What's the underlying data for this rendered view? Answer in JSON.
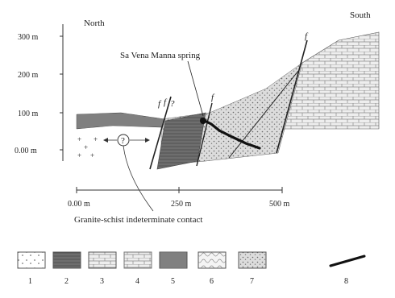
{
  "directions": {
    "left": "North",
    "right": "South"
  },
  "y_ticks": [
    "300 m",
    "200 m",
    "100 m",
    "0.00 m"
  ],
  "x_ticks": [
    "0.00 m",
    "250 m",
    "500 m"
  ],
  "annotations": {
    "spring": "Sa Vena Manna spring",
    "contact": "Granite-schist indeterminate contact",
    "circle_mark": "?",
    "fault_marks": [
      "f",
      "f",
      "?",
      "f",
      "f"
    ]
  },
  "legend": [
    {
      "num": "1",
      "pattern": "granite-crosses"
    },
    {
      "num": "2",
      "pattern": "dark-schist"
    },
    {
      "num": "3",
      "pattern": "bricks-light"
    },
    {
      "num": "4",
      "pattern": "bricks-thin"
    },
    {
      "num": "5",
      "pattern": "dark-lines"
    },
    {
      "num": "6",
      "pattern": "wavy-cells"
    },
    {
      "num": "7",
      "pattern": "stipple"
    },
    {
      "num": "8",
      "pattern": "thick-line"
    }
  ],
  "colors": {
    "ink": "#222222",
    "dark_schist": "#7d7d7d",
    "stipple_fill": "#cfcfcf",
    "limestone_fill": "#e6e6e6"
  }
}
